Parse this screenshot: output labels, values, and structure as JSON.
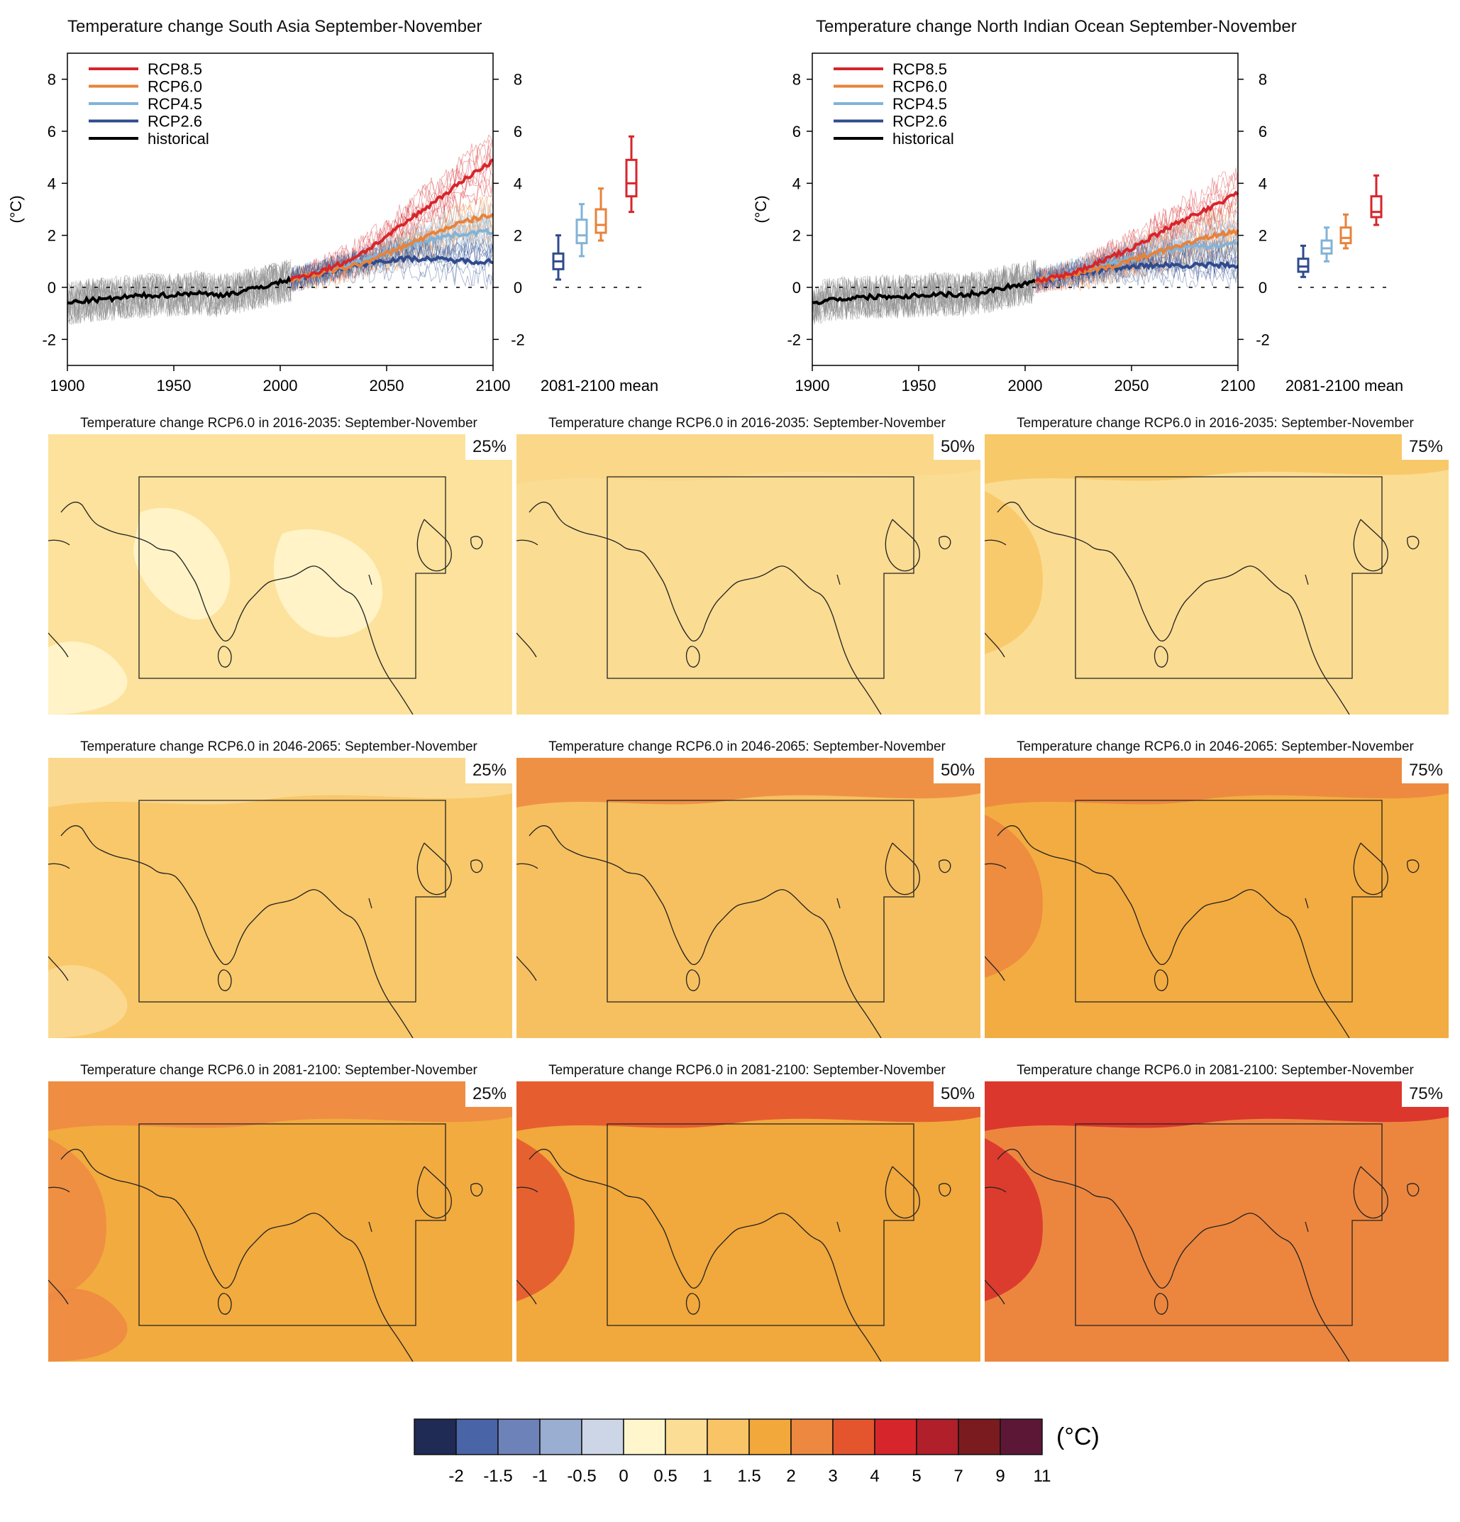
{
  "colors": {
    "rcp85": "#d6262b",
    "rcp60": "#e8823a",
    "rcp45": "#82b3d8",
    "rcp26": "#2f4b8e",
    "historical": "#000000",
    "spread": "#8a8a8a"
  },
  "chart_data": [
    {
      "type": "line",
      "title": "Temperature change South Asia September-November",
      "ylabel": "(°C)",
      "xlim": [
        1900,
        2100
      ],
      "ylim": [
        -3,
        9
      ],
      "x_ticks": [
        "1900",
        "1950",
        "2000",
        "2050",
        "2100"
      ],
      "y_ticks": [
        "-2",
        "0",
        "2",
        "4",
        "6",
        "8"
      ],
      "legend": [
        "RCP8.5",
        "RCP6.0",
        "RCP4.5",
        "RCP2.6",
        "historical"
      ],
      "legend_position": "top-left",
      "series": [
        {
          "name": "historical",
          "x": [
            1900,
            1910,
            1920,
            1930,
            1940,
            1950,
            1960,
            1970,
            1980,
            1990,
            2000,
            2005
          ],
          "values": [
            -0.6,
            -0.5,
            -0.45,
            -0.35,
            -0.3,
            -0.3,
            -0.2,
            -0.3,
            -0.2,
            0.0,
            0.2,
            0.3
          ]
        },
        {
          "name": "RCP2.6",
          "x": [
            2005,
            2020,
            2030,
            2040,
            2050,
            2060,
            2070,
            2080,
            2090,
            2100
          ],
          "values": [
            0.3,
            0.55,
            0.75,
            0.9,
            1.05,
            1.1,
            1.1,
            1.05,
            1.0,
            1.0
          ]
        },
        {
          "name": "RCP4.5",
          "x": [
            2005,
            2020,
            2030,
            2040,
            2050,
            2060,
            2070,
            2080,
            2090,
            2100
          ],
          "values": [
            0.3,
            0.6,
            0.8,
            1.05,
            1.35,
            1.6,
            1.85,
            2.0,
            2.1,
            2.15
          ]
        },
        {
          "name": "RCP6.0",
          "x": [
            2005,
            2020,
            2030,
            2040,
            2050,
            2060,
            2070,
            2080,
            2090,
            2100
          ],
          "values": [
            0.3,
            0.55,
            0.75,
            0.95,
            1.3,
            1.65,
            2.0,
            2.35,
            2.6,
            2.8
          ]
        },
        {
          "name": "RCP8.5",
          "x": [
            2005,
            2020,
            2030,
            2040,
            2050,
            2060,
            2070,
            2080,
            2090,
            2100
          ],
          "values": [
            0.3,
            0.65,
            0.95,
            1.4,
            1.95,
            2.55,
            3.15,
            3.75,
            4.35,
            4.85
          ]
        }
      ],
      "boxplot": {
        "label": "2081-2100 mean",
        "boxes": [
          {
            "name": "RCP2.6",
            "min": 0.3,
            "q1": 0.7,
            "median": 1.0,
            "q3": 1.3,
            "max": 2.0
          },
          {
            "name": "RCP4.5",
            "min": 1.2,
            "q1": 1.7,
            "median": 2.0,
            "q3": 2.6,
            "max": 3.2
          },
          {
            "name": "RCP6.0",
            "min": 1.8,
            "q1": 2.1,
            "median": 2.4,
            "q3": 3.0,
            "max": 3.8
          },
          {
            "name": "RCP8.5",
            "min": 2.9,
            "q1": 3.5,
            "median": 4.0,
            "q3": 4.9,
            "max": 5.8
          }
        ]
      }
    },
    {
      "type": "line",
      "title": "Temperature change North Indian Ocean September-November",
      "ylabel": "(°C)",
      "xlim": [
        1900,
        2100
      ],
      "ylim": [
        -3,
        9
      ],
      "x_ticks": [
        "1900",
        "1950",
        "2000",
        "2050",
        "2100"
      ],
      "y_ticks": [
        "-2",
        "0",
        "2",
        "4",
        "6",
        "8"
      ],
      "legend": [
        "RCP8.5",
        "RCP6.0",
        "RCP4.5",
        "RCP2.6",
        "historical"
      ],
      "legend_position": "top-left",
      "series": [
        {
          "name": "historical",
          "x": [
            1900,
            1910,
            1920,
            1930,
            1940,
            1950,
            1960,
            1970,
            1980,
            1990,
            2000,
            2005
          ],
          "values": [
            -0.6,
            -0.45,
            -0.4,
            -0.35,
            -0.35,
            -0.3,
            -0.25,
            -0.3,
            -0.2,
            0.0,
            0.15,
            0.25
          ]
        },
        {
          "name": "RCP2.6",
          "x": [
            2005,
            2020,
            2030,
            2040,
            2050,
            2060,
            2070,
            2080,
            2090,
            2100
          ],
          "values": [
            0.25,
            0.45,
            0.6,
            0.7,
            0.8,
            0.85,
            0.85,
            0.85,
            0.85,
            0.85
          ]
        },
        {
          "name": "RCP4.5",
          "x": [
            2005,
            2020,
            2030,
            2040,
            2050,
            2060,
            2070,
            2080,
            2090,
            2100
          ],
          "values": [
            0.25,
            0.5,
            0.7,
            0.9,
            1.1,
            1.3,
            1.45,
            1.55,
            1.6,
            1.65
          ]
        },
        {
          "name": "RCP6.0",
          "x": [
            2005,
            2020,
            2030,
            2040,
            2050,
            2060,
            2070,
            2080,
            2090,
            2100
          ],
          "values": [
            0.25,
            0.45,
            0.6,
            0.8,
            1.05,
            1.3,
            1.55,
            1.8,
            2.0,
            2.15
          ]
        },
        {
          "name": "RCP8.5",
          "x": [
            2005,
            2020,
            2030,
            2040,
            2050,
            2060,
            2070,
            2080,
            2090,
            2100
          ],
          "values": [
            0.25,
            0.5,
            0.8,
            1.15,
            1.5,
            1.95,
            2.4,
            2.8,
            3.2,
            3.6
          ]
        }
      ],
      "boxplot": {
        "label": "2081-2100 mean",
        "boxes": [
          {
            "name": "RCP2.6",
            "min": 0.4,
            "q1": 0.6,
            "median": 0.8,
            "q3": 1.1,
            "max": 1.6
          },
          {
            "name": "RCP4.5",
            "min": 1.0,
            "q1": 1.3,
            "median": 1.5,
            "q3": 1.8,
            "max": 2.3
          },
          {
            "name": "RCP6.0",
            "min": 1.5,
            "q1": 1.7,
            "median": 1.9,
            "q3": 2.3,
            "max": 2.8
          },
          {
            "name": "RCP8.5",
            "min": 2.4,
            "q1": 2.7,
            "median": 2.9,
            "q3": 3.5,
            "max": 4.3
          }
        ]
      }
    },
    {
      "type": "heatmap",
      "maps": [
        {
          "title": "Temperature change RCP6.0 in 2016-2035: September-November",
          "percentile": "25%",
          "base_color": "#fce29c",
          "patch_color": "#fff5cc"
        },
        {
          "title": "Temperature change RCP6.0 in 2016-2035: September-November",
          "percentile": "50%",
          "base_color": "#fbdc93",
          "patch_color": "#f9d688"
        },
        {
          "title": "Temperature change RCP6.0 in 2016-2035: September-November",
          "percentile": "75%",
          "base_color": "#fbdc93",
          "patch_color": "#f7c765"
        },
        {
          "title": "Temperature change RCP6.0 in 2046-2065: September-November",
          "percentile": "25%",
          "base_color": "#f8c86a",
          "patch_color": "#fbd993"
        },
        {
          "title": "Temperature change RCP6.0 in 2046-2065: September-November",
          "percentile": "50%",
          "base_color": "#f6c060",
          "patch_color": "#ee8c42"
        },
        {
          "title": "Temperature change RCP6.0 in 2046-2065: September-November",
          "percentile": "75%",
          "base_color": "#f3ac41",
          "patch_color": "#ec8640"
        },
        {
          "title": "Temperature change RCP6.0 in 2081-2100: September-November",
          "percentile": "25%",
          "base_color": "#f2ab3f",
          "patch_color": "#ee8a43"
        },
        {
          "title": "Temperature change RCP6.0 in 2081-2100: September-November",
          "percentile": "50%",
          "base_color": "#f1a83c",
          "patch_color": "#e4552e"
        },
        {
          "title": "Temperature change RCP6.0 in 2081-2100: September-November",
          "percentile": "75%",
          "base_color": "#ec863f",
          "patch_color": "#d92f2b"
        }
      ]
    },
    {
      "type": "colorbar",
      "unit": "(°C)",
      "labels": [
        "-2",
        "-1.5",
        "-1",
        "-0.5",
        "0",
        "0.5",
        "1",
        "1.5",
        "2",
        "3",
        "4",
        "5",
        "7",
        "9",
        "11"
      ],
      "colors": [
        "#1f2a55",
        "#4a64a8",
        "#6d82b8",
        "#9aaed1",
        "#cdd6e6",
        "#fff6cd",
        "#fcdd96",
        "#f8c466",
        "#f2a83b",
        "#ec8840",
        "#e4552e",
        "#d6262b",
        "#b01f2a",
        "#7a1b20",
        "#5c1737"
      ]
    }
  ]
}
